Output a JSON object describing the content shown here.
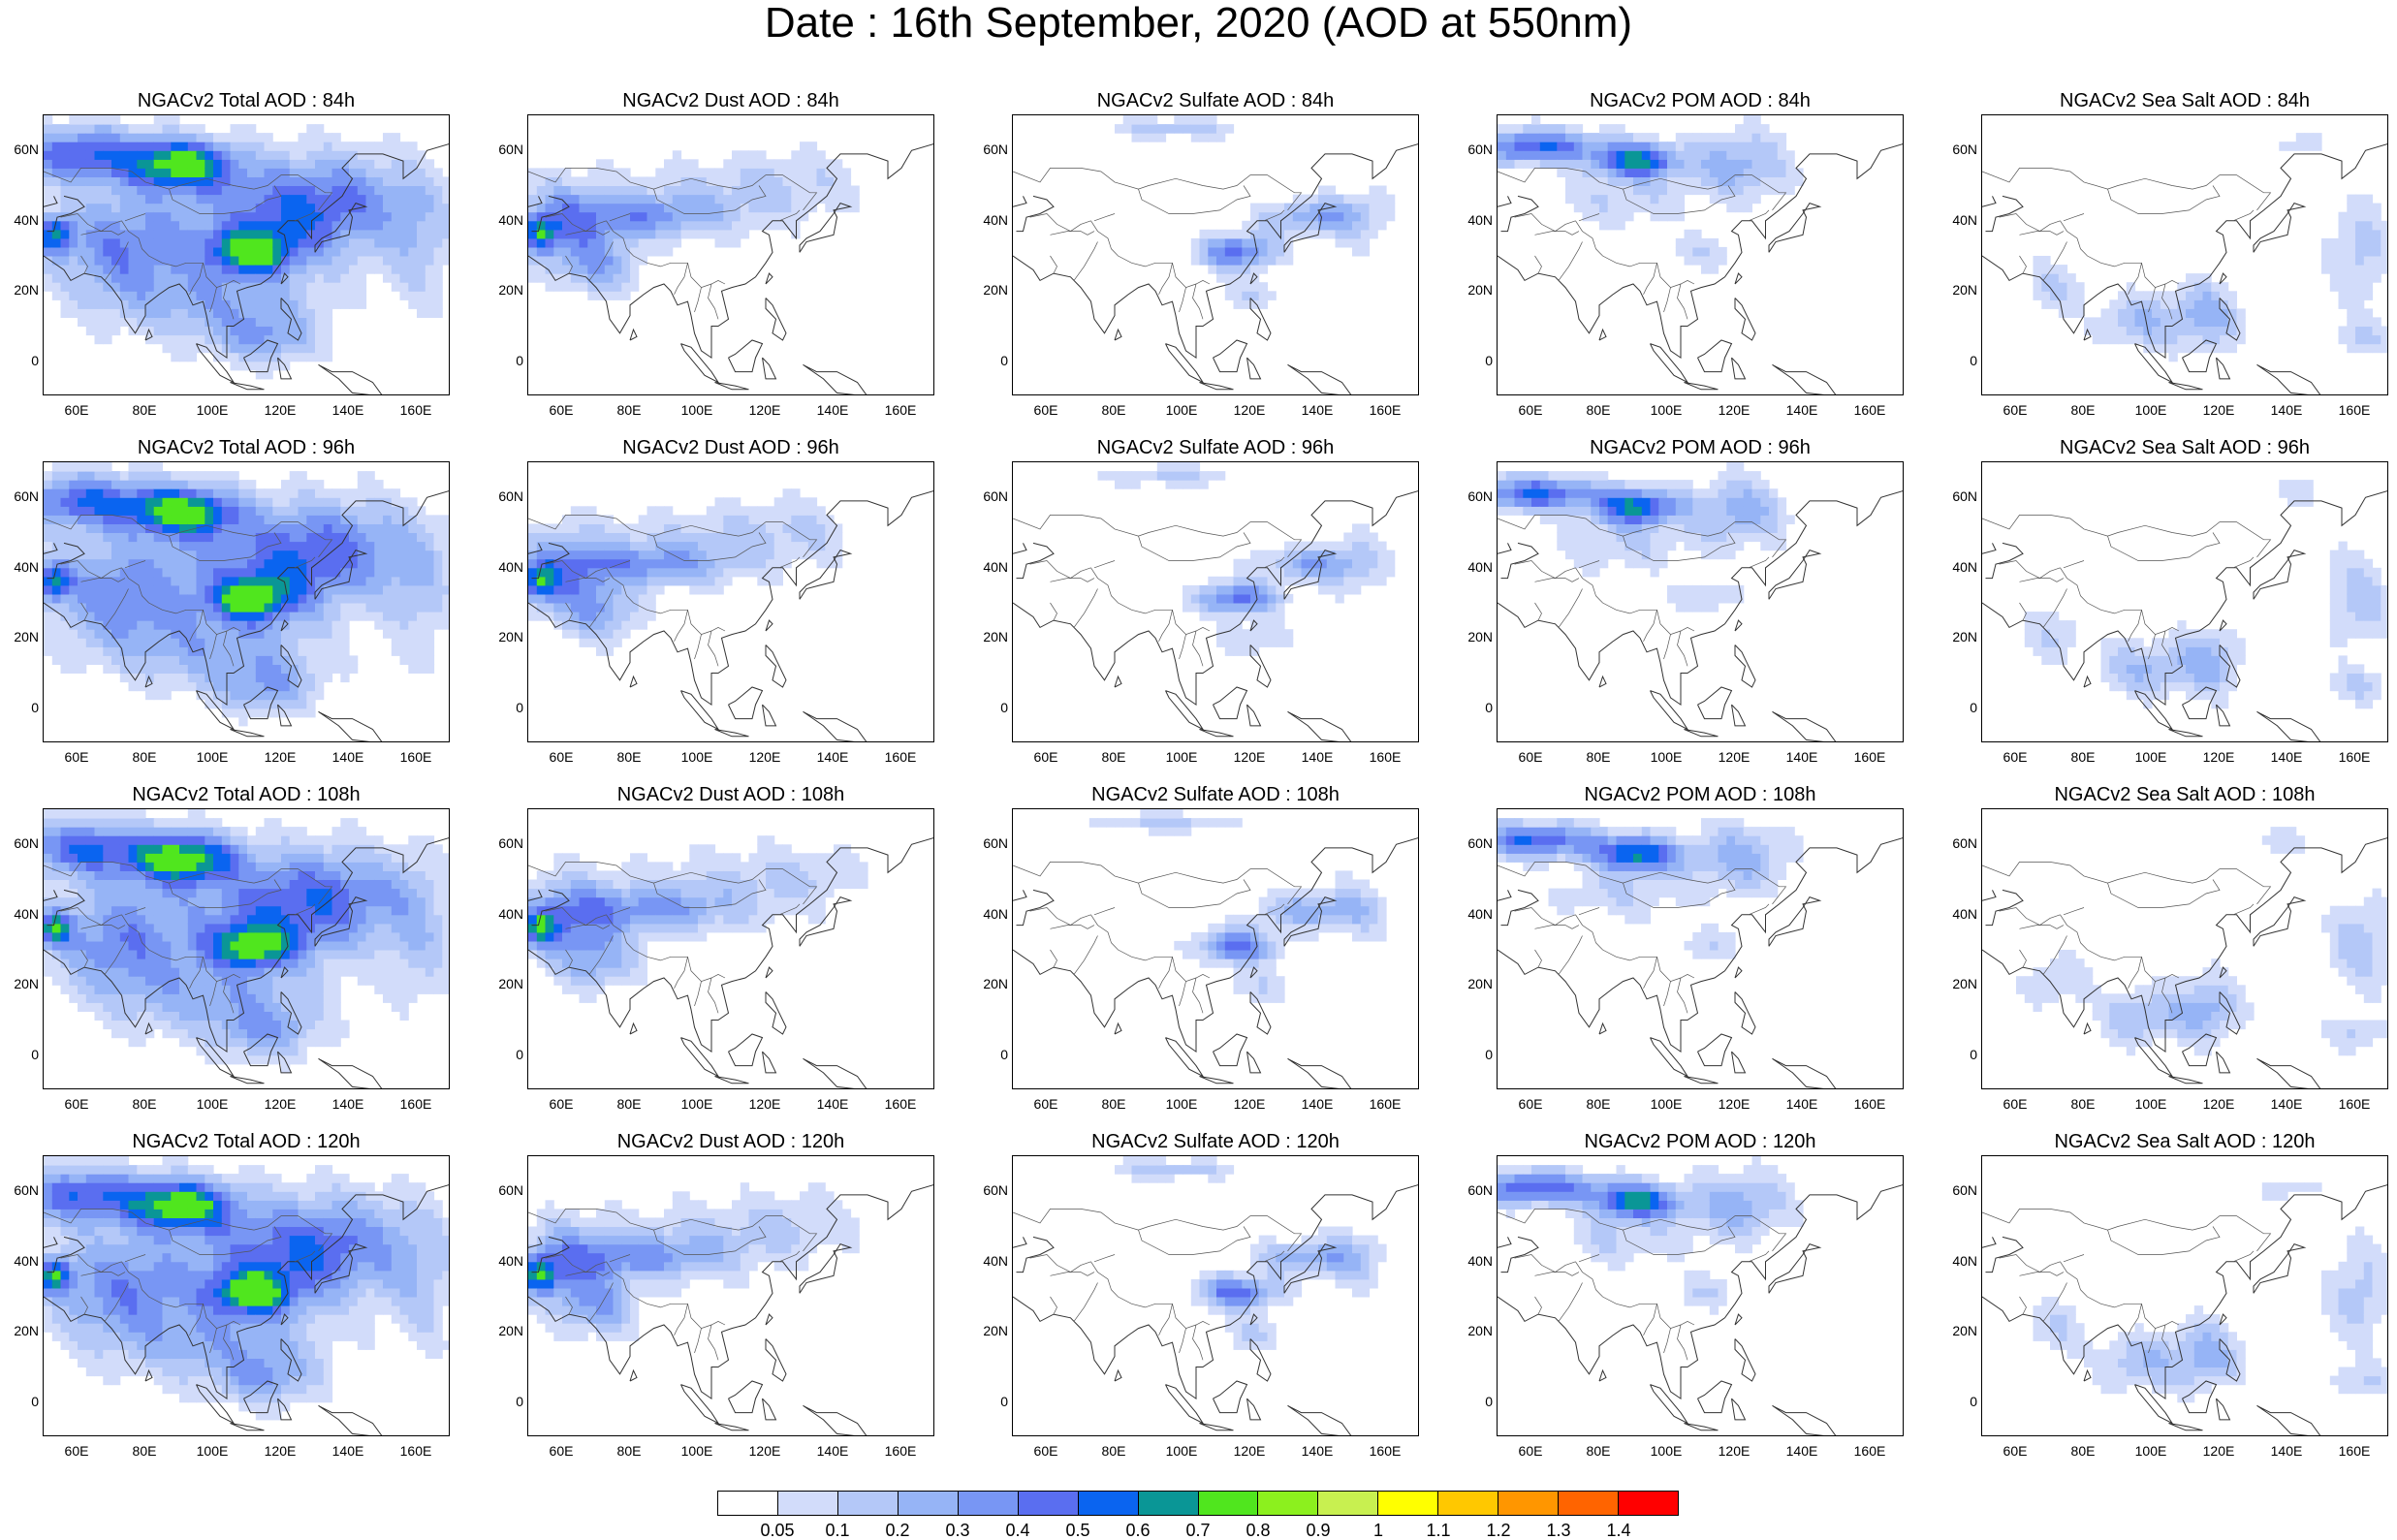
{
  "title": "Date : 16th September, 2020 (AOD at 550nm)",
  "x_ticks": [
    "60E",
    "80E",
    "100E",
    "120E",
    "140E",
    "160E"
  ],
  "y_ticks": [
    "60N",
    "40N",
    "20N",
    "0"
  ],
  "panels": [
    {
      "title": "NGACv2 Total AOD : 84h",
      "species": "total"
    },
    {
      "title": "NGACv2 Dust AOD : 84h",
      "species": "dust"
    },
    {
      "title": "NGACv2 Sulfate AOD : 84h",
      "species": "sulfate"
    },
    {
      "title": "NGACv2 POM AOD : 84h",
      "species": "pom"
    },
    {
      "title": "NGACv2 Sea Salt AOD : 84h",
      "species": "seasalt"
    },
    {
      "title": "NGACv2 Total AOD : 96h",
      "species": "total"
    },
    {
      "title": "NGACv2 Dust AOD : 96h",
      "species": "dust"
    },
    {
      "title": "NGACv2 Sulfate AOD : 96h",
      "species": "sulfate"
    },
    {
      "title": "NGACv2 POM AOD : 96h",
      "species": "pom"
    },
    {
      "title": "NGACv2 Sea Salt AOD : 96h",
      "species": "seasalt"
    },
    {
      "title": "NGACv2 Total AOD : 108h",
      "species": "total"
    },
    {
      "title": "NGACv2 Dust AOD : 108h",
      "species": "dust"
    },
    {
      "title": "NGACv2 Sulfate AOD : 108h",
      "species": "sulfate"
    },
    {
      "title": "NGACv2 POM AOD : 108h",
      "species": "pom"
    },
    {
      "title": "NGACv2 Sea Salt AOD : 108h",
      "species": "seasalt"
    },
    {
      "title": "NGACv2 Total AOD : 120h",
      "species": "total"
    },
    {
      "title": "NGACv2 Dust AOD : 120h",
      "species": "dust"
    },
    {
      "title": "NGACv2 Sulfate AOD : 120h",
      "species": "sulfate"
    },
    {
      "title": "NGACv2 POM AOD : 120h",
      "species": "pom"
    },
    {
      "title": "NGACv2 Sea Salt  AOD : 120h",
      "species": "seasalt"
    }
  ],
  "colorbar": {
    "labels": [
      "0.05",
      "0.1",
      "0.2",
      "0.3",
      "0.4",
      "0.5",
      "0.6",
      "0.7",
      "0.8",
      "0.9",
      "1",
      "1.1",
      "1.2",
      "1.3",
      "1.4"
    ],
    "colors": [
      "#ffffff",
      "#d2dcfa",
      "#b4c8f8",
      "#96b4f6",
      "#7896f4",
      "#5a6ef0",
      "#0a64f0",
      "#0a9696",
      "#50e61e",
      "#8cf01e",
      "#c8f050",
      "#ffff00",
      "#ffc800",
      "#ff9600",
      "#ff6400",
      "#ff0000"
    ]
  }
}
